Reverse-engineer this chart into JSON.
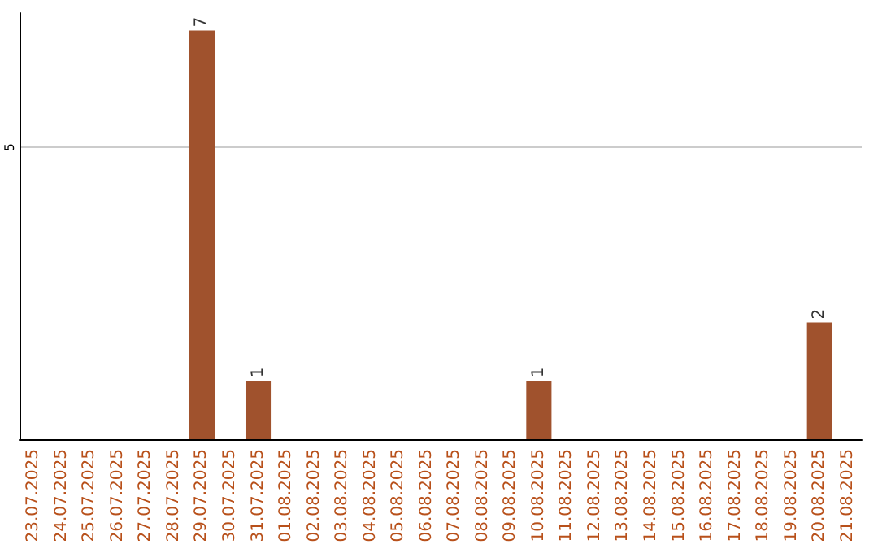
{
  "chart_data": {
    "type": "bar",
    "categories": [
      "23.07.2025",
      "24.07.2025",
      "25.07.2025",
      "26.07.2025",
      "27.07.2025",
      "28.07.2025",
      "29.07.2025",
      "30.07.2025",
      "31.07.2025",
      "01.08.2025",
      "02.08.2025",
      "03.08.2025",
      "04.08.2025",
      "05.08.2025",
      "06.08.2025",
      "07.08.2025",
      "08.08.2025",
      "09.08.2025",
      "10.08.2025",
      "11.08.2025",
      "12.08.2025",
      "13.08.2025",
      "14.08.2025",
      "15.08.2025",
      "16.08.2025",
      "17.08.2025",
      "18.08.2025",
      "19.08.2025",
      "20.08.2025",
      "21.08.2025"
    ],
    "values": [
      0,
      0,
      0,
      0,
      0,
      0,
      7,
      0,
      1,
      0,
      0,
      0,
      0,
      0,
      0,
      0,
      0,
      0,
      1,
      0,
      0,
      0,
      0,
      0,
      0,
      0,
      0,
      0,
      2,
      0
    ],
    "value_labels": [
      null,
      null,
      null,
      null,
      null,
      null,
      "7",
      null,
      "1",
      null,
      null,
      null,
      null,
      null,
      null,
      null,
      null,
      null,
      "1",
      null,
      null,
      null,
      null,
      null,
      null,
      null,
      null,
      null,
      "2",
      null
    ],
    "color": "#a0522d",
    "ylim": [
      0,
      7.3
    ],
    "yticks": [
      5
    ],
    "grid": "y"
  }
}
